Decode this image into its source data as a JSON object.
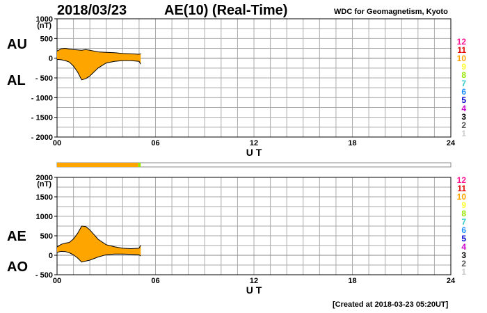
{
  "header": {
    "date": "2018/03/23",
    "title": "AE(10) (Real-Time)",
    "source": "WDC for Geomagnetism, Kyoto",
    "created": "[Created at 2018-03-23 05:20UT]"
  },
  "legend_stations": [
    "12",
    "11",
    "10",
    "9",
    "8",
    "7",
    "6",
    "5",
    "4",
    "3",
    "2",
    "1"
  ],
  "legend_colors": [
    "#ff1493",
    "#e60000",
    "#ffa500",
    "#ffff33",
    "#99e600",
    "#33cccc",
    "#1e90ff",
    "#0000cc",
    "#cc00cc",
    "#000000",
    "#555555",
    "#cccccc"
  ],
  "coverage_colors": {
    "main": "#ffa500",
    "recent": "#99e600"
  },
  "fill_color": "#ffa500",
  "chart_data": [
    {
      "type": "area",
      "panel": "upper",
      "labels": [
        "AU",
        "AL"
      ],
      "ylabel": "(nT)",
      "xlabel": "U T",
      "ylim": [
        -2000,
        1000
      ],
      "yticks": [
        1000,
        500,
        0,
        -500,
        -1000,
        -1500,
        -2000
      ],
      "xticks": [
        "00",
        "06",
        "12",
        "18",
        "24"
      ],
      "xlim_hours": [
        0,
        24
      ],
      "grid": true,
      "series": [
        {
          "name": "AU",
          "x": [
            0,
            0.25,
            0.5,
            0.75,
            1,
            1.25,
            1.5,
            1.75,
            2,
            2.5,
            3,
            3.5,
            4,
            4.5,
            5,
            5.1
          ],
          "values": [
            180,
            240,
            250,
            230,
            220,
            210,
            200,
            220,
            200,
            160,
            150,
            140,
            120,
            110,
            100,
            110
          ]
        },
        {
          "name": "AL",
          "x": [
            0,
            0.25,
            0.5,
            0.75,
            1,
            1.25,
            1.5,
            1.75,
            2,
            2.5,
            3,
            3.5,
            4,
            4.5,
            5,
            5.1
          ],
          "values": [
            -30,
            -40,
            -60,
            -100,
            -200,
            -350,
            -550,
            -520,
            -450,
            -250,
            -120,
            -80,
            -60,
            -60,
            -80,
            -150
          ]
        }
      ]
    },
    {
      "type": "area",
      "panel": "lower",
      "labels": [
        "AE",
        "AO"
      ],
      "ylabel": "(nT)",
      "xlabel": "U T",
      "ylim": [
        -500,
        2000
      ],
      "yticks": [
        2000,
        1500,
        1000,
        500,
        0,
        -500
      ],
      "xticks": [
        "00",
        "06",
        "12",
        "18",
        "24"
      ],
      "xlim_hours": [
        0,
        24
      ],
      "grid": true,
      "series": [
        {
          "name": "AE",
          "x": [
            0,
            0.25,
            0.5,
            0.75,
            1,
            1.25,
            1.5,
            1.75,
            2,
            2.5,
            3,
            3.5,
            4,
            4.5,
            5,
            5.1
          ],
          "values": [
            210,
            280,
            310,
            330,
            420,
            560,
            750,
            740,
            650,
            410,
            270,
            220,
            180,
            170,
            180,
            260
          ]
        },
        {
          "name": "AO",
          "x": [
            0,
            0.25,
            0.5,
            0.75,
            1,
            1.25,
            1.5,
            1.75,
            2,
            2.5,
            3,
            3.5,
            4,
            4.5,
            5,
            5.1
          ],
          "values": [
            75,
            100,
            95,
            65,
            10,
            -70,
            -175,
            -150,
            -125,
            -45,
            15,
            30,
            30,
            25,
            10,
            -20
          ]
        }
      ]
    }
  ],
  "coverage_bar": {
    "covered_hours": [
      0,
      5.1
    ],
    "total_hours": 24
  }
}
